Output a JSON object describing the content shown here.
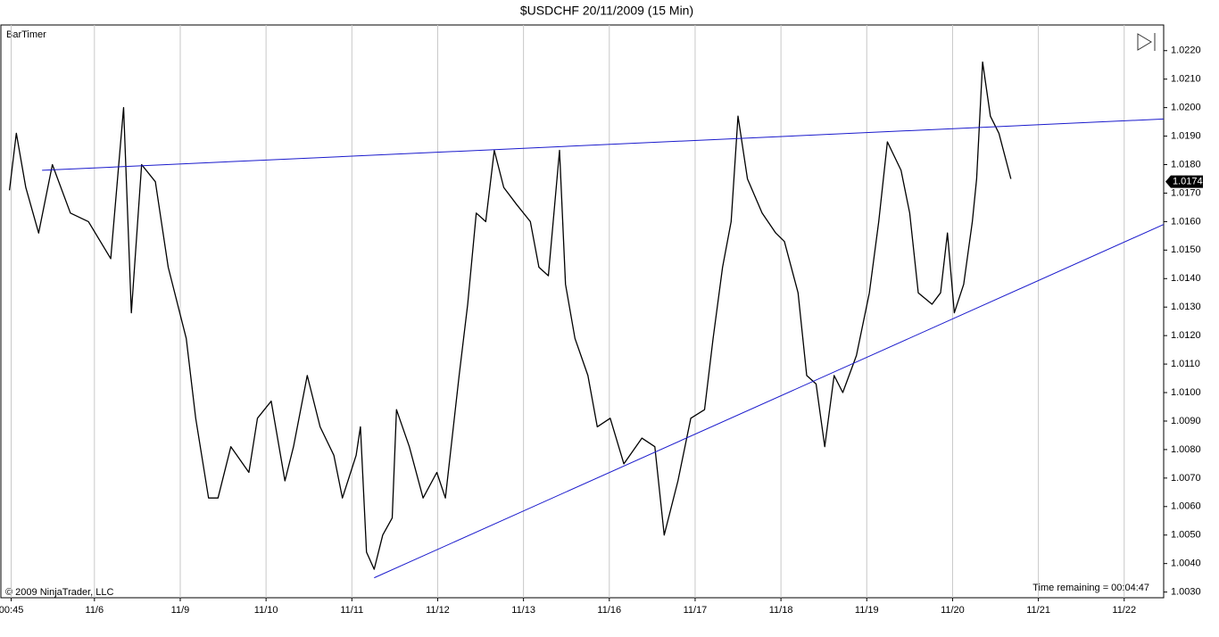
{
  "chart_data": {
    "type": "line",
    "title": "$USDCHF  20/11/2009 (15 Min)",
    "indicator_label": "BarTimer",
    "copyright": "© 2009 NinjaTrader, LLC",
    "timer_text": "Time remaining = 00:04:47",
    "xlim": [
      -0.09,
      13.46
    ],
    "xticks": [
      {
        "value": 0.03,
        "label": "00:45"
      },
      {
        "value": 1,
        "label": "11/6"
      },
      {
        "value": 2,
        "label": "11/9"
      },
      {
        "value": 3,
        "label": "11/10"
      },
      {
        "value": 4,
        "label": "11/11"
      },
      {
        "value": 5,
        "label": "11/12"
      },
      {
        "value": 6,
        "label": "11/13"
      },
      {
        "value": 7,
        "label": "11/16"
      },
      {
        "value": 8,
        "label": "11/17"
      },
      {
        "value": 9,
        "label": "11/18"
      },
      {
        "value": 10,
        "label": "11/19"
      },
      {
        "value": 11,
        "label": "11/20"
      },
      {
        "value": 12,
        "label": "11/21"
      },
      {
        "value": 13,
        "label": "11/22"
      }
    ],
    "ylim": [
      1.0028,
      1.0229
    ],
    "yticks": [
      {
        "value": 1.003,
        "label": "1.0030"
      },
      {
        "value": 1.004,
        "label": "1.0040"
      },
      {
        "value": 1.005,
        "label": "1.0050"
      },
      {
        "value": 1.006,
        "label": "1.0060"
      },
      {
        "value": 1.007,
        "label": "1.0070"
      },
      {
        "value": 1.008,
        "label": "1.0080"
      },
      {
        "value": 1.009,
        "label": "1.0090"
      },
      {
        "value": 1.01,
        "label": "1.0100"
      },
      {
        "value": 1.011,
        "label": "1.0110"
      },
      {
        "value": 1.012,
        "label": "1.0120"
      },
      {
        "value": 1.013,
        "label": "1.0130"
      },
      {
        "value": 1.014,
        "label": "1.0140"
      },
      {
        "value": 1.015,
        "label": "1.0150"
      },
      {
        "value": 1.016,
        "label": "1.0160"
      },
      {
        "value": 1.017,
        "label": "1.0170"
      },
      {
        "value": 1.018,
        "label": "1.0180"
      },
      {
        "value": 1.019,
        "label": "1.0190"
      },
      {
        "value": 1.02,
        "label": "1.0200"
      },
      {
        "value": 1.021,
        "label": "1.0210"
      },
      {
        "value": 1.022,
        "label": "1.0220"
      }
    ],
    "grid": true,
    "color": "#000000",
    "x": [
      0.01,
      0.09,
      0.2,
      0.35,
      0.51,
      0.72,
      0.93,
      1.19,
      1.34,
      1.43,
      1.55,
      1.71,
      1.86,
      2.07,
      2.18,
      2.33,
      2.44,
      2.59,
      2.8,
      2.9,
      3.06,
      3.22,
      3.32,
      3.48,
      3.63,
      3.79,
      3.89,
      4.05,
      4.1,
      4.17,
      4.26,
      4.36,
      4.47,
      4.52,
      4.67,
      4.83,
      4.99,
      5.09,
      5.25,
      5.35,
      5.45,
      5.56,
      5.66,
      5.77,
      5.92,
      6.08,
      6.18,
      6.29,
      6.42,
      6.49,
      6.6,
      6.75,
      6.86,
      7.01,
      7.17,
      7.38,
      7.53,
      7.64,
      7.8,
      7.95,
      8.11,
      8.21,
      8.32,
      8.42,
      8.5,
      8.61,
      8.78,
      8.94,
      9.04,
      9.2,
      9.3,
      9.41,
      9.51,
      9.62,
      9.72,
      9.88,
      10.03,
      10.14,
      10.24,
      10.4,
      10.5,
      10.6,
      10.76,
      10.86,
      10.94,
      11.02,
      11.13,
      11.23,
      11.28,
      11.35,
      11.44,
      11.54,
      11.68
    ],
    "values": [
      1.0171,
      1.0191,
      1.0172,
      1.0156,
      1.018,
      1.0163,
      1.016,
      1.0147,
      1.02,
      1.0128,
      1.018,
      1.0174,
      1.0144,
      1.0119,
      1.0091,
      1.0063,
      1.0063,
      1.0081,
      1.0072,
      1.0091,
      1.0097,
      1.0069,
      1.0081,
      1.0106,
      1.0088,
      1.0078,
      1.0063,
      1.0078,
      1.0088,
      1.0044,
      1.0038,
      1.005,
      1.0056,
      1.0094,
      1.0081,
      1.0063,
      1.0072,
      1.0063,
      1.0106,
      1.0131,
      1.0163,
      1.016,
      1.0185,
      1.0172,
      1.0166,
      1.016,
      1.0144,
      1.0141,
      1.0185,
      1.0138,
      1.0119,
      1.0106,
      1.0088,
      1.0091,
      1.0075,
      1.0084,
      1.0081,
      1.005,
      1.0069,
      1.0091,
      1.0094,
      1.0119,
      1.0144,
      1.016,
      1.0197,
      1.0175,
      1.0163,
      1.0156,
      1.0153,
      1.0135,
      1.0106,
      1.0103,
      1.0081,
      1.0106,
      1.01,
      1.0113,
      1.0135,
      1.016,
      1.0188,
      1.0178,
      1.0163,
      1.0135,
      1.0131,
      1.0135,
      1.0156,
      1.0128,
      1.0138,
      1.016,
      1.0175,
      1.0216,
      1.0197,
      1.0191,
      1.0175
    ],
    "trendlines": [
      {
        "color": "#1a1acc",
        "x": [
          0.39,
          13.46
        ],
        "values": [
          1.0178,
          1.0196
        ]
      },
      {
        "color": "#1a1acc",
        "x": [
          4.26,
          13.46
        ],
        "values": [
          1.0035,
          1.0159
        ]
      }
    ],
    "last_price": {
      "value": 1.0174,
      "label": "1.0174"
    }
  }
}
